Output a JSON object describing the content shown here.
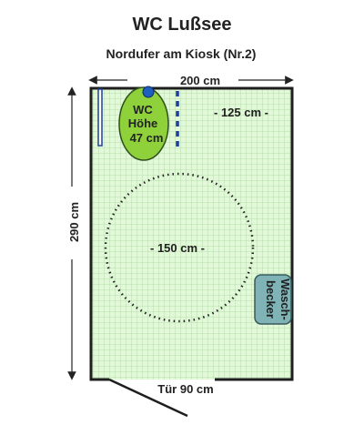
{
  "title": "WC Lußsee",
  "subtitle": "Nordufer am Kiosk (Nr.2)",
  "room": {
    "width_label": "200 cm",
    "height_label": "290 cm",
    "door_label": "Tür 90 cm"
  },
  "toilet": {
    "line1": "WC",
    "line2": "Höhe",
    "line3": "47 cm"
  },
  "side_space_label": "- 125 cm -",
  "turning_circle_label": "- 150 cm -",
  "sink": {
    "line1": "Wasch-",
    "line2": "becker"
  },
  "colors": {
    "floor": "#e3f7d9",
    "grid": "#a9d9a0",
    "wall": "#1e1e1e",
    "toilet": "#8fd13a",
    "toilet_dot": "#1f5fbf",
    "grab_bar": "#1f3fa0",
    "sink": "#7fb3b6"
  }
}
